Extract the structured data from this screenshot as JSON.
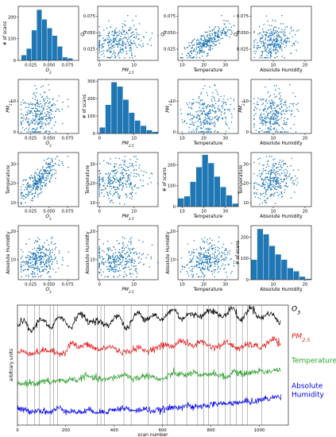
{
  "chart_data": {
    "type": "scatter",
    "variables": [
      {
        "key": "o3",
        "label": "O3",
        "ticks": [
          0.025,
          0.05,
          0.075
        ],
        "tick_labels": [
          "0.025",
          "0.050",
          "0.075"
        ]
      },
      {
        "key": "pm",
        "label": "PM2.5",
        "ticks": [
          0,
          10
        ],
        "tick_labels": [
          "0",
          "10"
        ]
      },
      {
        "key": "temp",
        "label": "Temperature",
        "ticks": [
          10,
          20,
          30
        ],
        "tick_labels": [
          "10",
          "20",
          "30"
        ]
      },
      {
        "key": "hum",
        "label": "Absolute Humidity",
        "ticks": [
          10,
          20
        ],
        "tick_labels": [
          "10",
          "20"
        ]
      }
    ],
    "axis_ranges": {
      "o3": [
        0.008,
        0.09
      ],
      "pm": [
        -0.5,
        17
      ],
      "temp": [
        8,
        36
      ],
      "hum": [
        3,
        22
      ]
    },
    "histograms": {
      "o3": {
        "bin_edges": [
          0.012,
          0.019,
          0.026,
          0.033,
          0.04,
          0.047,
          0.054,
          0.061,
          0.068,
          0.075,
          0.082
        ],
        "counts": [
          25,
          55,
          140,
          235,
          190,
          150,
          115,
          65,
          15,
          10
        ],
        "ylim": [
          0,
          250
        ],
        "yticks": [
          0,
          100,
          200
        ]
      },
      "pm": {
        "bin_edges": [
          0,
          1.7,
          3.4,
          5.1,
          6.8,
          8.5,
          10.2,
          11.9,
          13.6,
          15.3,
          17
        ],
        "counts": [
          35,
          165,
          295,
          270,
          195,
          120,
          75,
          45,
          20,
          10
        ],
        "ylim": [
          0,
          310
        ],
        "yticks": [
          0,
          100,
          200,
          300
        ]
      },
      "temp": {
        "bin_edges": [
          8,
          10.8,
          13.6,
          16.4,
          19.2,
          22,
          24.8,
          27.6,
          30.4,
          33.2,
          36
        ],
        "counts": [
          40,
          50,
          120,
          190,
          250,
          210,
          145,
          95,
          55,
          15
        ],
        "ylim": [
          0,
          260
        ],
        "yticks": [
          0,
          100,
          200
        ]
      },
      "hum": {
        "bin_edges": [
          3,
          4.9,
          6.8,
          8.7,
          10.6,
          12.5,
          14.4,
          16.3,
          18.2,
          20.1,
          22
        ],
        "counts": [
          95,
          240,
          215,
          160,
          120,
          95,
          55,
          40,
          15,
          5
        ],
        "ylim": [
          0,
          255
        ],
        "yticks": [
          0,
          100,
          200
        ]
      }
    },
    "hist_ylabel": "# of scans",
    "timeseries": {
      "xlabel": "scan number",
      "ylabel": "arbitrary units",
      "xlim": [
        0,
        1120
      ],
      "xticks": [
        0,
        200,
        400,
        600,
        800,
        1000
      ],
      "vertical_line_positions": [
        40,
        70,
        90,
        135,
        150,
        165,
        330,
        345,
        360,
        440,
        470,
        540,
        600,
        620,
        650,
        700,
        745,
        770,
        790,
        830,
        860,
        880,
        905,
        930,
        950,
        1010
      ],
      "series": [
        {
          "name": "O3",
          "color": "#000000",
          "offset": 4.0,
          "values": [
            0.3,
            0.35,
            0.25,
            0.4,
            0.45,
            0.35,
            0.55,
            0.5,
            0.4,
            0.65,
            0.7,
            0.6,
            0.3,
            0.45,
            0.55,
            0.6,
            0.35,
            0.5,
            0.75,
            0.8,
            0.65,
            0.5,
            0.95,
            0.85,
            0.7,
            0.9,
            0.55,
            0.85,
            1.0,
            0.75,
            0.9,
            0.8,
            0.95,
            0.7,
            0.85,
            0.95,
            0.8,
            0.65,
            0.75,
            0.6
          ]
        },
        {
          "name": "PM2.5",
          "color": "#e41a1c",
          "offset": 2.8,
          "values": [
            0.35,
            0.4,
            0.3,
            0.35,
            0.45,
            0.4,
            0.3,
            0.35,
            0.8,
            0.55,
            0.7,
            0.6,
            0.45,
            0.55,
            0.6,
            0.4,
            0.35,
            0.45,
            0.55,
            0.4,
            0.5,
            0.6,
            0.7,
            0.55,
            0.9,
            0.75,
            0.6,
            0.85,
            0.7,
            0.55,
            0.65,
            0.8,
            0.6,
            0.5,
            0.7,
            0.65,
            0.55,
            0.75,
            0.95,
            0.6
          ]
        },
        {
          "name": "Temperature",
          "color": "#2ca02c",
          "offset": 1.5,
          "values": [
            0.25,
            0.3,
            0.35,
            0.3,
            0.4,
            0.35,
            0.45,
            0.4,
            0.5,
            0.45,
            0.65,
            0.55,
            0.5,
            0.45,
            0.55,
            0.6,
            0.7,
            0.5,
            0.55,
            0.65,
            0.6,
            0.45,
            0.55,
            0.75,
            0.7,
            0.65,
            0.8,
            0.6,
            0.7,
            0.75,
            0.65,
            0.55,
            0.85,
            0.7,
            0.75,
            0.8,
            0.85,
            0.8,
            0.9,
            0.85
          ]
        },
        {
          "name": "Absolute Humidity",
          "color": "#0000ee",
          "offset": 0.3,
          "values": [
            0.4,
            0.35,
            0.3,
            0.35,
            0.3,
            0.25,
            0.45,
            0.35,
            0.3,
            0.25,
            0.3,
            0.35,
            0.25,
            0.3,
            0.35,
            0.4,
            0.45,
            0.3,
            0.35,
            0.4,
            0.3,
            0.35,
            0.4,
            0.45,
            0.5,
            0.55,
            0.45,
            0.5,
            0.55,
            0.6,
            0.65,
            0.6,
            0.7,
            0.65,
            0.75,
            0.7,
            0.8,
            0.85,
            0.9,
            0.95
          ]
        }
      ],
      "series_labels": [
        {
          "lines": [
            "O",
            "3"
          ],
          "type": "sub"
        },
        {
          "lines": [
            "PM",
            "2.5"
          ],
          "type": "sub"
        },
        {
          "lines": [
            "Temperature"
          ],
          "type": "plain"
        },
        {
          "lines": [
            "Absolute",
            "Humidity"
          ],
          "type": "plain"
        }
      ]
    }
  }
}
